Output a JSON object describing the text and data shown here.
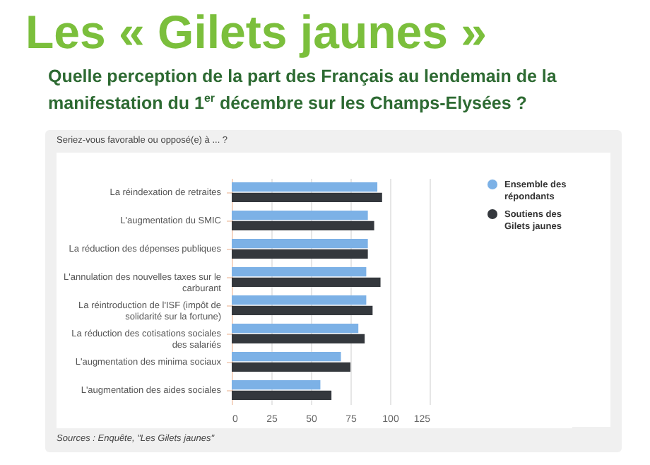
{
  "chart_data": {
    "type": "bar",
    "orientation": "horizontal",
    "title": "Les « Gilets jaunes »",
    "subtitle": "Quelle perception de la part des Français au lendemain de la manifestation du 1$^{er}$ décembre sur les Champs-Elysées ?",
    "annotations": [
      "Seriez-vous favorable ou opposé(e) à ... ?",
      "Sources : Enquête, \"Les Gilets jaunes\""
    ],
    "categories": [
      "La réindexation de retraites",
      "L'augmentation du SMIC",
      "La réduction des dépenses publiques",
      "L'annulation des nouvelles taxes sur le carburant",
      "La réintroduction de l'ISF (impôt de solidarité sur la fortune)",
      "La réduction des cotisations sociales des salariés",
      "L'augmentation des minima sociaux",
      "L'augmentation des aides sociales"
    ],
    "series": [
      {
        "name": "Ensemble des répondants",
        "color": "#7cb1e6",
        "values": [
          92,
          86,
          86,
          85,
          85,
          80,
          69,
          56
        ]
      },
      {
        "name": "Soutiens des Gilets jaunes",
        "color": "#34383d",
        "values": [
          95,
          90,
          86,
          94,
          89,
          84,
          75,
          63
        ]
      }
    ],
    "xlim": [
      0,
      125
    ],
    "xticks": [
      0,
      25,
      50,
      75,
      100,
      125
    ],
    "grid": "x",
    "legend": "right"
  }
}
